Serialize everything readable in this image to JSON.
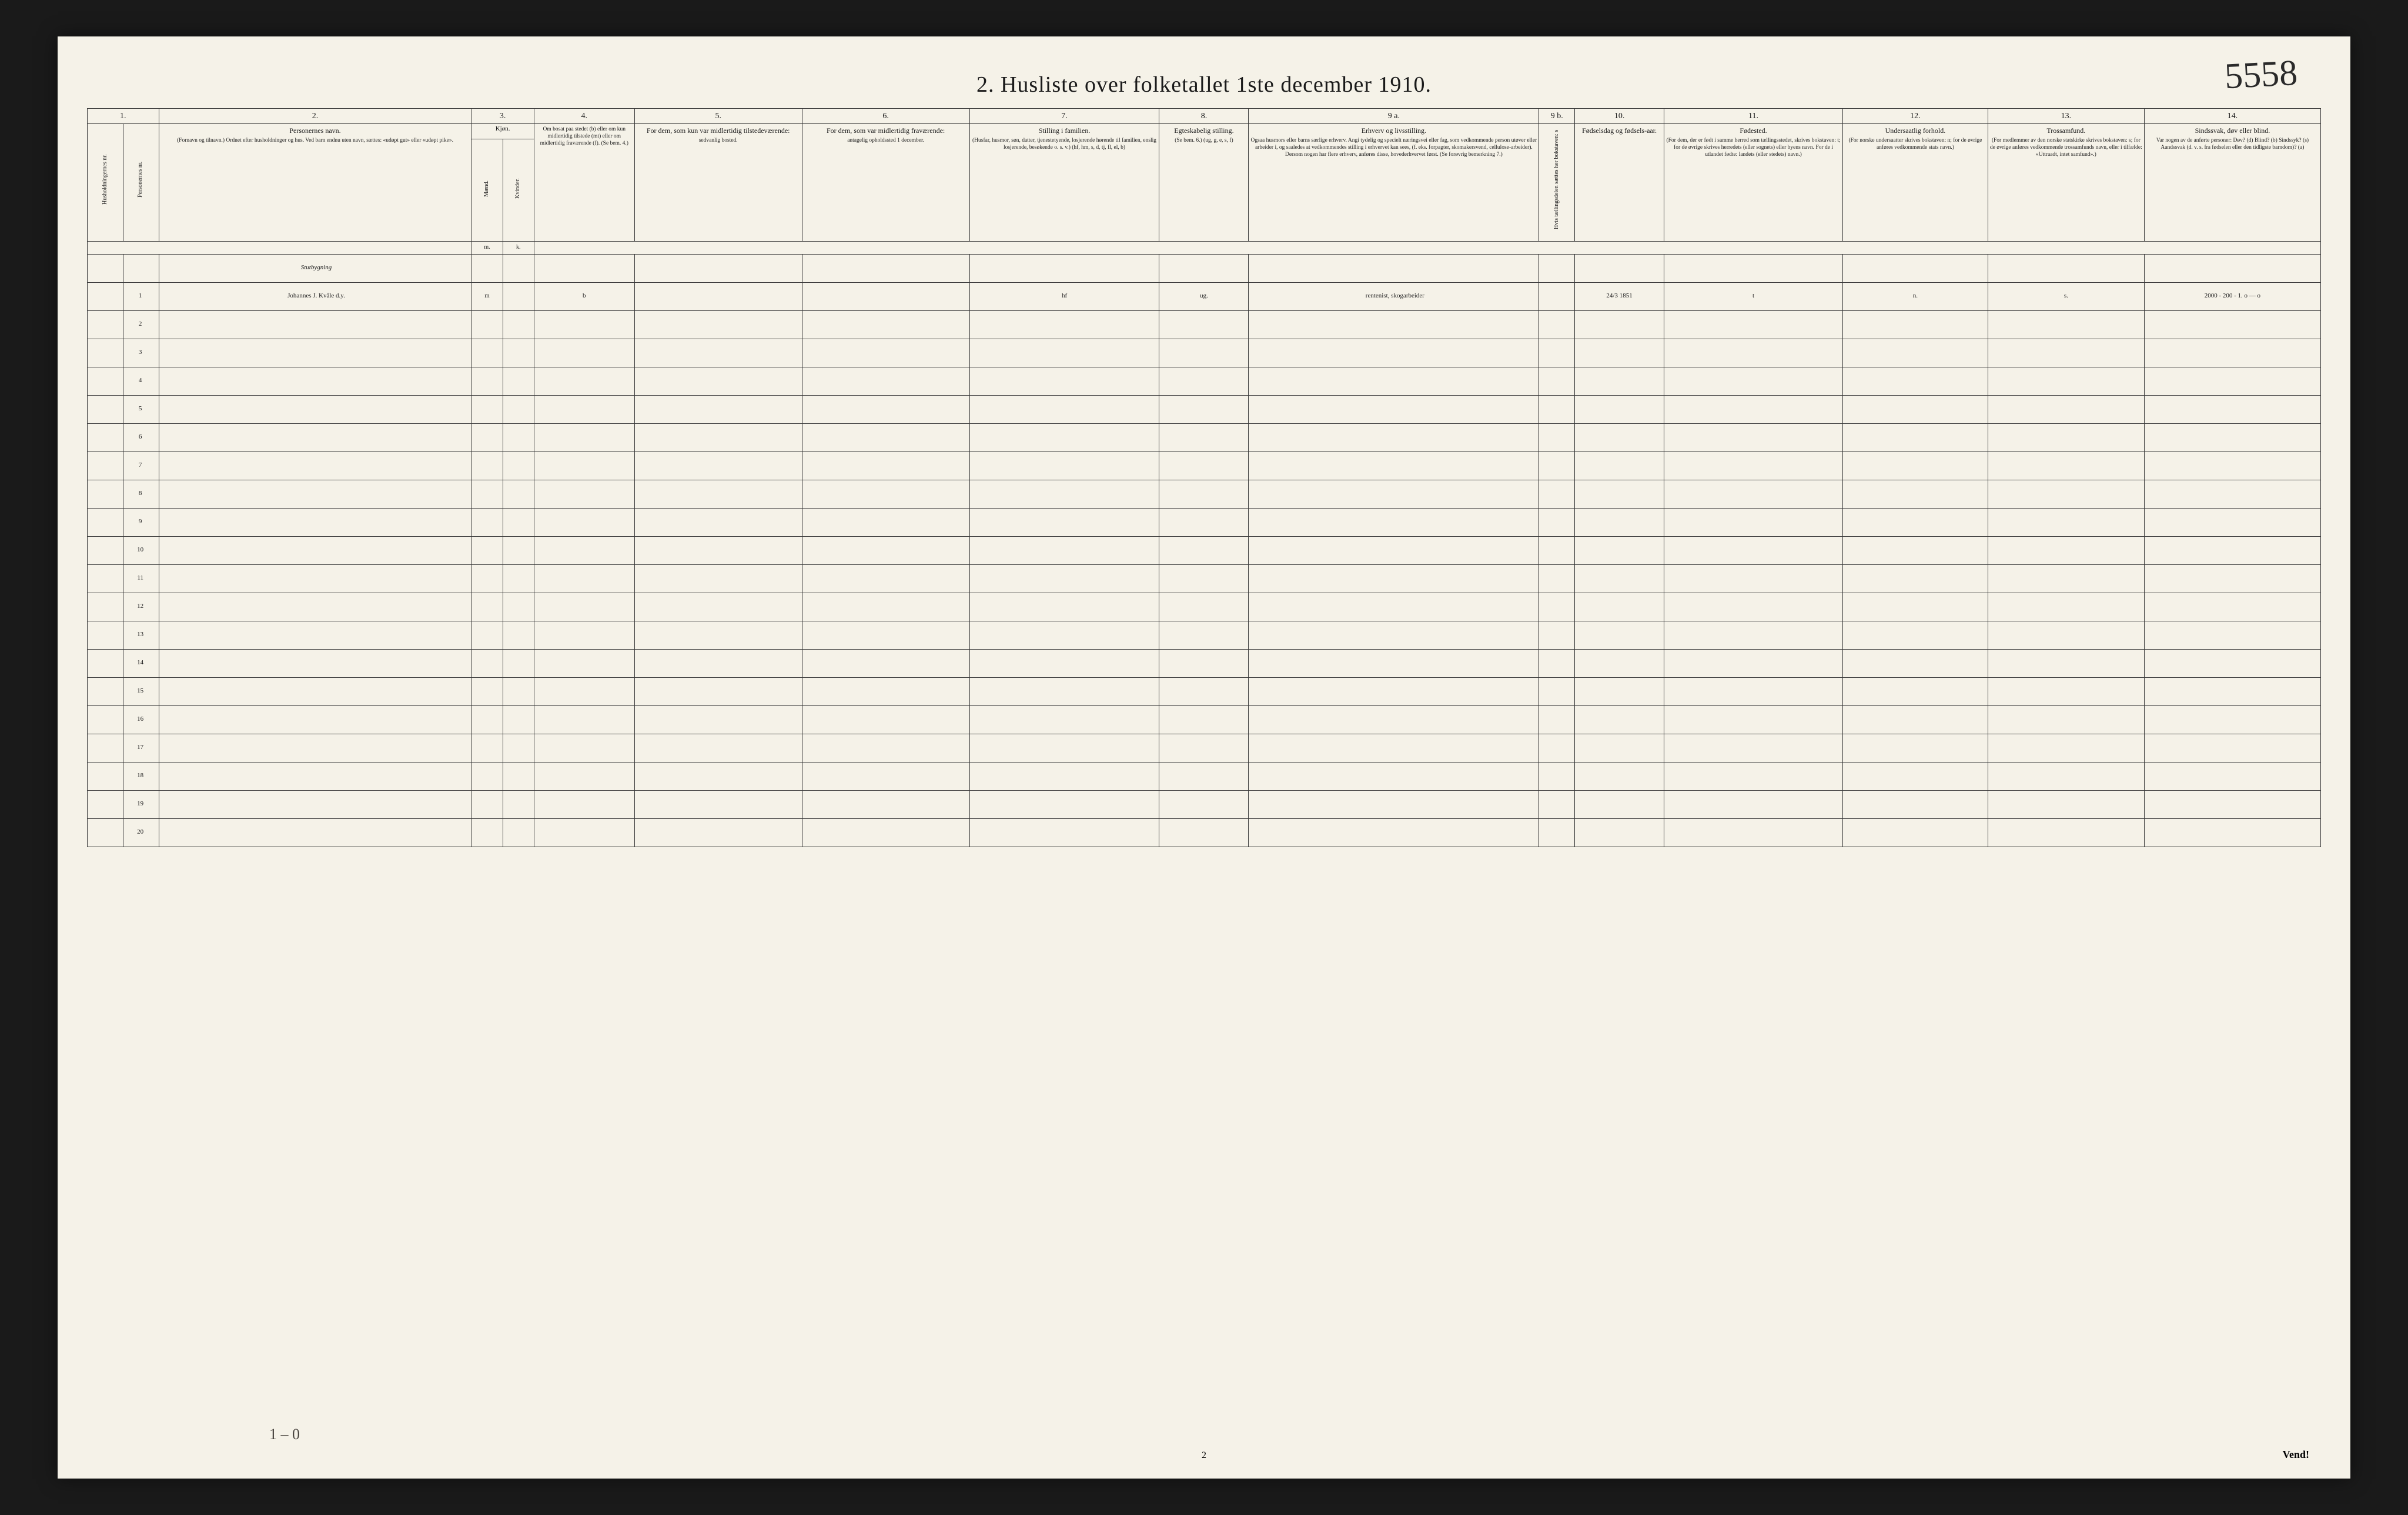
{
  "annotation_tr": "5558",
  "title": "2.  Husliste over folketallet 1ste december 1910.",
  "col_numbers": [
    "1.",
    "2.",
    "3.",
    "4.",
    "5.",
    "6.",
    "7.",
    "8.",
    "9 a.",
    "9 b.",
    "10.",
    "11.",
    "12.",
    "13.",
    "14."
  ],
  "headers": {
    "c1a": "Husholdningernes nr.",
    "c1b": "Personernes nr.",
    "c2_label": "Personernes navn.",
    "c2_sub": "(Fornavn og tilnavn.)\nOrdnet efter husholdninger og hus.\nVed barn endnu uten navn, sættes: «udøpt gut» eller «udøpt pike».",
    "c3_label": "Kjøn.",
    "c3a": "Mænd.",
    "c3b": "Kvinder.",
    "c3a_s": "m.",
    "c3b_s": "k.",
    "c4_sub": "Om bosat paa stedet (b) eller om kun midlertidig tilstede (mt) eller om midlertidig fraværende (f). (Se bem. 4.)",
    "c5_label": "For dem, som kun var midlertidig tilstedeværende:",
    "c5_sub": "sedvanlig bosted.",
    "c6_label": "For dem, som var midlertidig fraværende:",
    "c6_sub": "antagelig opholdssted 1 december.",
    "c7_label": "Stilling i familien.",
    "c7_sub": "(Husfar, husmor, søn, datter, tjenestetyende, losjerende hørende til familien, enslig losjerende, besøkende o. s. v.)\n(hf, hm, s, d, tj, fl, el, b)",
    "c8_label": "Egteskabelig stilling.",
    "c8_sub": "(Se bem. 6.)\n(ug, g, e, s, f)",
    "c9a_label": "Erhverv og livsstilling.",
    "c9a_sub": "Ogsaa husmors eller barns særlige erhverv. Angi tydelig og specielt næringsvei eller fag, som vedkommende person utøver eller arbeider i, og saaledes at vedkommendes stilling i erhvervet kan sees, (f. eks. forpagter, skomakersvend, cellulose-arbeider). Dersom nogen har flere erhverv, anføres disse, hovederhvervet først. (Se forøvrig bemerkning 7.)",
    "c9b": "Hvis tællingsdelen sættes her bokstaven: s",
    "c10_label": "Fødselsdag og fødsels-aar.",
    "c11_label": "Fødested.",
    "c11_sub": "(For dem, der er født i samme herred som tællingsstedet, skrives bokstaven: t; for de øvrige skrives herredets (eller sognets) eller byens navn. For de i utlandet fødte: landets (eller stedets) navn.)",
    "c12_label": "Undersaatlig forhold.",
    "c12_sub": "(For norske undersaatter skrives bokstaven: n; for de øvrige anføres vedkommende stats navn.)",
    "c13_label": "Trossamfund.",
    "c13_sub": "(For medlemmer av den norske statskirke skrives bokstaven: s; for de øvrige anføres vedkommende trossamfunds navn, eller i tilfælde: «Uttraadt, intet samfund».)",
    "c14_label": "Sindssvak, døv eller blind.",
    "c14_sub": "Var nogen av de anførte personer:\nDøv? (d)\nBlind? (b)\nSindssyk? (s)\nAandssvak (d. v. s. fra fødselen eller den tidligste barndom)? (a)"
  },
  "row_header_note": "Stutbygning",
  "rows": [
    {
      "n": "1",
      "name": "Johannes J. Kvåle d.y.",
      "sex_m": "m",
      "sex_k": "",
      "c4": "b",
      "c5": "",
      "c6": "",
      "c7": "hf",
      "c8": "ug.",
      "c9a": "rentenist, skogarbeider",
      "c9b": "",
      "c10": "24/3 1851",
      "c11": "t",
      "c12": "n.",
      "c13": "s.",
      "c14": "2000 - 200 - 1.\no — o"
    },
    {
      "n": "2"
    },
    {
      "n": "3"
    },
    {
      "n": "4"
    },
    {
      "n": "5"
    },
    {
      "n": "6"
    },
    {
      "n": "7"
    },
    {
      "n": "8"
    },
    {
      "n": "9"
    },
    {
      "n": "10"
    },
    {
      "n": "11"
    },
    {
      "n": "12"
    },
    {
      "n": "13"
    },
    {
      "n": "14"
    },
    {
      "n": "15"
    },
    {
      "n": "16"
    },
    {
      "n": "17"
    },
    {
      "n": "18"
    },
    {
      "n": "19"
    },
    {
      "n": "20"
    }
  ],
  "bottom_tally": "1 – 0",
  "page_number": "2",
  "vend": "Vend!"
}
